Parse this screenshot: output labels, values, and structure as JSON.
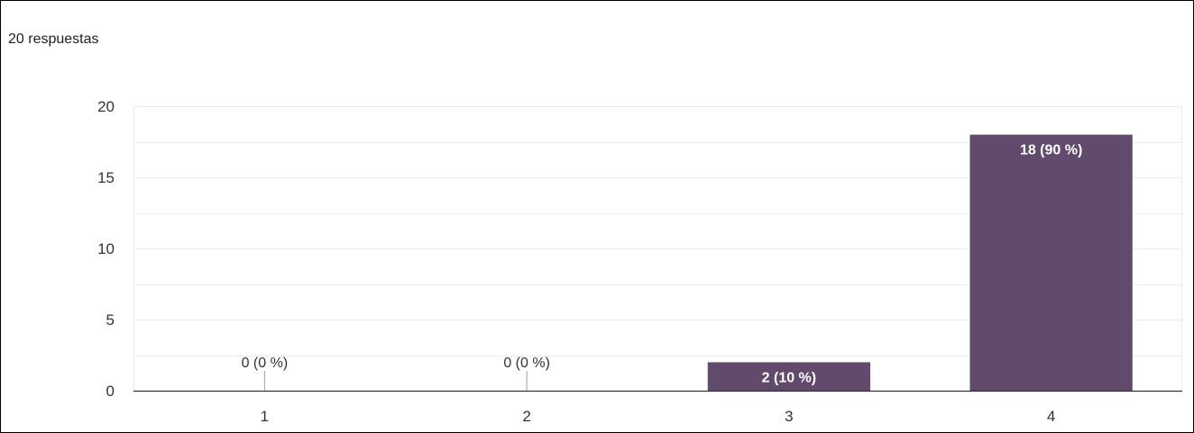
{
  "response_count": "20 respuestas",
  "colors": {
    "bar": "#614a6b",
    "grid": "#ebebeb",
    "axis": "#333333",
    "label_inside": "#ffffff",
    "label_outside": "#333333"
  },
  "chart_data": {
    "type": "bar",
    "categories": [
      "1",
      "2",
      "3",
      "4"
    ],
    "values": [
      0,
      0,
      2,
      18
    ],
    "data_labels": [
      "0 (0 %)",
      "0 (0 %)",
      "2 (10 %)",
      "18 (90 %)"
    ],
    "ylim": [
      0,
      20
    ],
    "yticks": [
      0,
      5,
      10,
      15,
      20
    ],
    "grid": true,
    "legend": "none"
  }
}
